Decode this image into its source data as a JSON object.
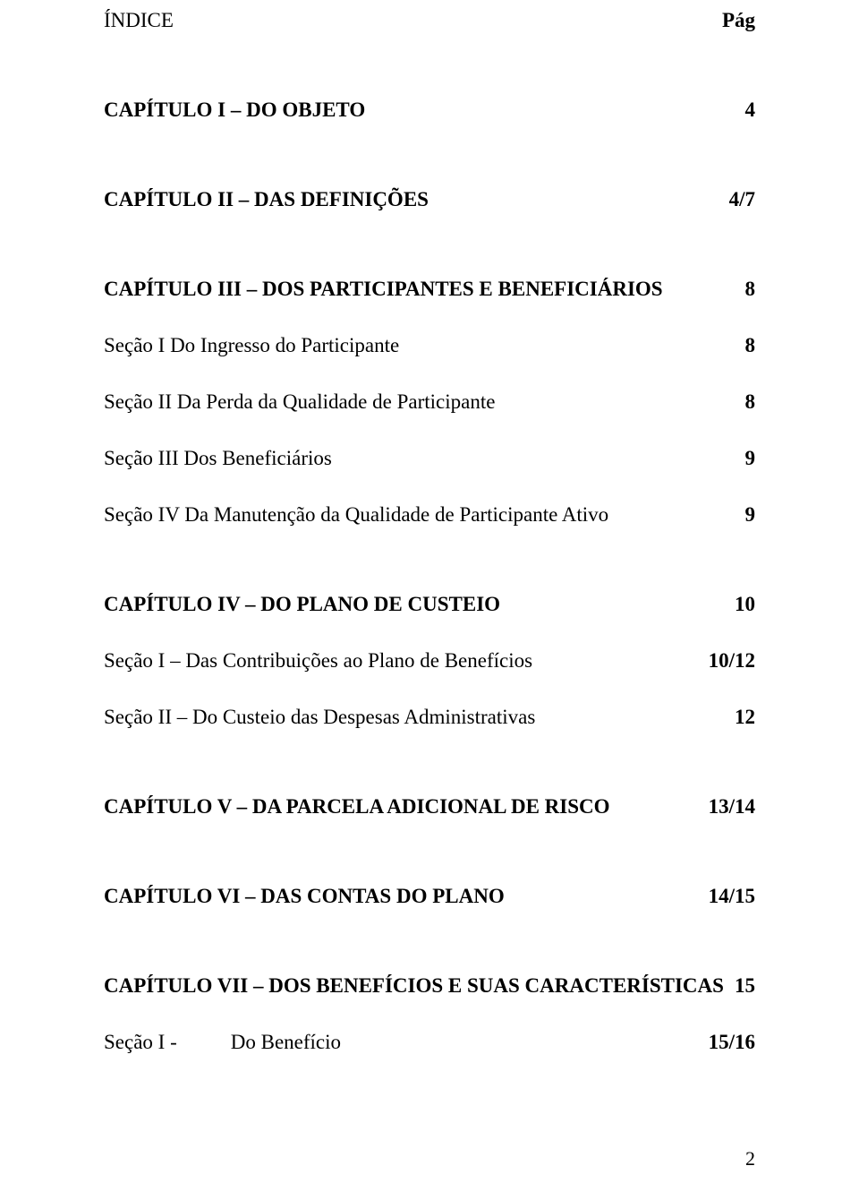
{
  "header": {
    "title": "ÍNDICE",
    "page_label": "Pág"
  },
  "entries": [
    {
      "label": "CAPÍTULO I – DO OBJETO",
      "page": "4",
      "bold": true,
      "gap": "lg"
    },
    {
      "label": "CAPÍTULO II – DAS DEFINIÇÕES",
      "page": "4/7",
      "bold": true,
      "gap": "lg"
    },
    {
      "label": "CAPÍTULO III – DOS PARTICIPANTES E BENEFICIÁRIOS",
      "page": "8",
      "bold": true,
      "gap": "md"
    },
    {
      "label": "Seção I Do Ingresso do Participante",
      "page": "8",
      "bold": false,
      "gap": "md"
    },
    {
      "label": "Seção II Da Perda da Qualidade de Participante",
      "page": "8",
      "bold": false,
      "gap": "md"
    },
    {
      "label": "Seção III Dos Beneficiários",
      "page": "9",
      "bold": false,
      "gap": "md"
    },
    {
      "label": "Seção IV Da Manutenção da Qualidade de Participante Ativo",
      "page": "9",
      "bold": false,
      "gap": "lg"
    },
    {
      "label": "CAPÍTULO IV – DO PLANO DE CUSTEIO",
      "page": "10",
      "bold": true,
      "gap": "md"
    },
    {
      "label": "Seção I – Das Contribuições ao Plano de Benefícios",
      "page": "10/12",
      "bold": false,
      "gap": "md"
    },
    {
      "label": "Seção II – Do Custeio das Despesas Administrativas",
      "page": "12",
      "bold": false,
      "gap": "lg"
    },
    {
      "label": "CAPÍTULO V – DA PARCELA ADICIONAL DE RISCO",
      "page": "13/14",
      "bold": true,
      "gap": "lg"
    },
    {
      "label": "CAPÍTULO VI – DAS CONTAS DO PLANO",
      "page": "14/15",
      "bold": true,
      "gap": "lg"
    },
    {
      "label": "CAPÍTULO VII – DOS BENEFÍCIOS E SUAS CARACTERÍSTICAS",
      "page": "15",
      "bold": true,
      "gap": "md"
    }
  ],
  "last_entry": {
    "prefix": "Seção I -",
    "label": "Do Benefício",
    "page": "15/16"
  },
  "footer": {
    "page_number": "2"
  }
}
